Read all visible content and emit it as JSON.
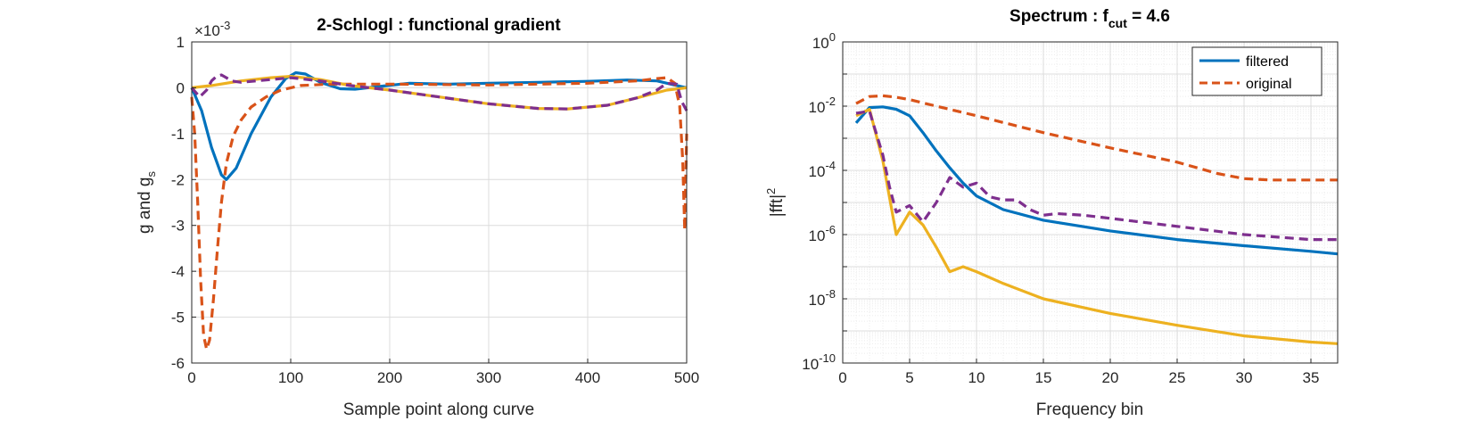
{
  "chart_data": [
    {
      "type": "line",
      "title": "2-Schlogl : functional gradient",
      "xlabel": "Sample point along curve",
      "ylabel_main": "g and g",
      "ylabel_sub": "s",
      "exponent_prefix": "×10",
      "exponent_power": "-3",
      "xlim": [
        0,
        500
      ],
      "ylim": [
        -6,
        1
      ],
      "xticks": [
        "0",
        "100",
        "200",
        "300",
        "400",
        "500"
      ],
      "yticks": [
        "1",
        "0",
        "-1",
        "-2",
        "-3",
        "-4",
        "-5",
        "-6"
      ],
      "grid": true,
      "series": [
        {
          "color": "#0072BD",
          "dash": "solid",
          "x": [
            0,
            10,
            20,
            30,
            35,
            45,
            60,
            80,
            95,
            105,
            115,
            130,
            150,
            165,
            190,
            220,
            260,
            300,
            350,
            400,
            440,
            470,
            490,
            500
          ],
          "y": [
            0,
            -0.5,
            -1.3,
            -1.9,
            -2.0,
            -1.75,
            -1.0,
            -0.2,
            0.2,
            0.33,
            0.3,
            0.12,
            -0.02,
            -0.03,
            0.03,
            0.1,
            0.08,
            0.1,
            0.12,
            0.14,
            0.17,
            0.15,
            0.05,
            0
          ]
        },
        {
          "color": "#D95319",
          "dash": "dashed",
          "x": [
            0,
            3,
            6,
            9,
            12,
            15,
            18,
            22,
            26,
            30,
            35,
            42,
            50,
            60,
            75,
            90,
            110,
            140,
            200,
            300,
            400,
            450,
            470,
            480,
            488,
            493,
            496,
            498,
            500
          ],
          "y": [
            -0.2,
            -1.0,
            -2.5,
            -4.2,
            -5.4,
            -5.7,
            -5.5,
            -4.6,
            -3.5,
            -2.5,
            -1.65,
            -1.05,
            -0.7,
            -0.42,
            -0.2,
            -0.05,
            0.05,
            0.08,
            0.08,
            0.06,
            0.1,
            0.15,
            0.2,
            0.22,
            0.1,
            -0.4,
            -1.6,
            -3.1,
            -1.0
          ]
        },
        {
          "color": "#EDB120",
          "dash": "solid",
          "x": [
            0,
            20,
            50,
            80,
            100,
            130,
            160,
            200,
            250,
            300,
            350,
            380,
            420,
            450,
            480,
            500
          ],
          "y": [
            0,
            0.05,
            0.15,
            0.22,
            0.25,
            0.18,
            0.05,
            -0.05,
            -0.2,
            -0.35,
            -0.45,
            -0.46,
            -0.38,
            -0.22,
            -0.05,
            0
          ]
        },
        {
          "color": "#7E2F8E",
          "dash": "dashed",
          "x": [
            0,
            8,
            15,
            20,
            25,
            30,
            35,
            40,
            50,
            70,
            100,
            130,
            160,
            200,
            250,
            300,
            350,
            380,
            420,
            450,
            470,
            480,
            490,
            495,
            500
          ],
          "y": [
            0,
            -0.2,
            -0.05,
            0.15,
            0.25,
            0.28,
            0.22,
            0.15,
            0.12,
            0.16,
            0.22,
            0.15,
            0.05,
            -0.05,
            -0.2,
            -0.35,
            -0.45,
            -0.46,
            -0.38,
            -0.22,
            -0.05,
            0.1,
            0.08,
            -0.3,
            -0.5
          ]
        }
      ]
    },
    {
      "type": "line",
      "title_main": "Spectrum : f",
      "title_sub": "cut",
      "title_tail": " = 4.6",
      "xlabel": "Frequency bin",
      "ylabel_main": "|fft|",
      "ylabel_sup": "2",
      "xlim": [
        0,
        37
      ],
      "ylim": [
        1e-10,
        1
      ],
      "yscale": "log",
      "xticks": [
        "0",
        "5",
        "10",
        "15",
        "20",
        "25",
        "30",
        "35"
      ],
      "yticks": [
        {
          "base": "10",
          "exp": "0"
        },
        {
          "base": "10",
          "exp": "-2"
        },
        {
          "base": "10",
          "exp": "-4"
        },
        {
          "base": "10",
          "exp": "-6"
        },
        {
          "base": "10",
          "exp": "-8"
        },
        {
          "base": "10",
          "exp": "-10"
        }
      ],
      "grid": true,
      "legend": {
        "position": "top-right",
        "entries": [
          {
            "name": "filtered",
            "color": "#0072BD",
            "dash": "solid"
          },
          {
            "name": "original",
            "color": "#D95319",
            "dash": "dashed"
          }
        ]
      },
      "series": [
        {
          "name": "filtered",
          "color": "#0072BD",
          "dash": "solid",
          "x": [
            1,
            2,
            3,
            4,
            5,
            6,
            7,
            8,
            9,
            10,
            12,
            15,
            20,
            25,
            30,
            35,
            37
          ],
          "y": [
            0.003,
            0.009,
            0.0095,
            0.008,
            0.005,
            0.0015,
            0.0004,
            0.00012,
            4e-05,
            1.6e-05,
            6e-06,
            2.8e-06,
            1.3e-06,
            7e-07,
            4.5e-07,
            3e-07,
            2.5e-07
          ]
        },
        {
          "name": "original",
          "color": "#D95319",
          "dash": "dashed",
          "x": [
            1,
            2,
            3,
            4,
            5,
            7,
            10,
            15,
            20,
            25,
            28,
            30,
            32,
            35,
            37
          ],
          "y": [
            0.012,
            0.02,
            0.021,
            0.019,
            0.016,
            0.01,
            0.005,
            0.0015,
            0.0005,
            0.00018,
            8e-05,
            5.5e-05,
            5e-05,
            5e-05,
            5e-05
          ]
        },
        {
          "color": "#EDB120",
          "dash": "solid",
          "x": [
            1,
            2,
            3,
            4,
            5,
            6,
            7,
            8,
            9,
            10,
            12,
            15,
            20,
            25,
            30,
            35,
            37
          ],
          "y": [
            0.005,
            0.008,
            0.0002,
            1e-06,
            5e-06,
            2e-06,
            4e-07,
            7e-08,
            1e-07,
            7e-08,
            3e-08,
            1e-08,
            3.5e-09,
            1.5e-09,
            7e-10,
            4.5e-10,
            4e-10
          ]
        },
        {
          "color": "#7E2F8E",
          "dash": "dashed",
          "x": [
            1,
            2,
            3,
            3.5,
            4,
            5,
            6,
            7,
            8,
            9,
            10,
            11,
            12,
            13,
            14,
            15,
            16,
            18,
            20,
            25,
            30,
            35,
            37
          ],
          "y": [
            0.006,
            0.007,
            0.0003,
            3e-05,
            5e-06,
            8e-06,
            2.5e-06,
            1e-05,
            6e-05,
            3e-05,
            4e-05,
            1.5e-05,
            1.2e-05,
            1.2e-05,
            6e-06,
            4e-06,
            4.5e-06,
            4e-06,
            3.2e-06,
            1.8e-06,
            1e-06,
            7e-07,
            7e-07
          ]
        }
      ]
    }
  ]
}
